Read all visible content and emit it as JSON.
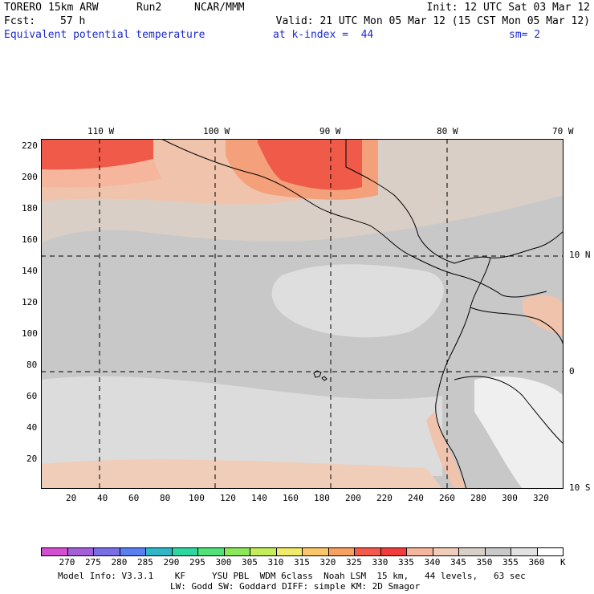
{
  "header": {
    "model": "TORERO",
    "resolution": "15km ARW",
    "run": "Run2",
    "org": "NCAR/MMM",
    "init": "Init: 12 UTC Sat 03 Mar 12",
    "fcst_label": "Fcst:",
    "fcst_value": "57 h",
    "valid": "Valid: 21 UTC Mon 05 Mar 12 (15 CST Mon 05 Mar 12)",
    "field": "Equivalent potential temperature",
    "level": "at k-index =  44",
    "smooth": "sm= 2"
  },
  "map": {
    "lon_labels": [
      "110 W",
      "100 W",
      "90 W",
      "80 W",
      "70 W"
    ],
    "lat_labels": [
      "10 N",
      "0",
      "10 S"
    ],
    "y_ticks": [
      "220",
      "200",
      "180",
      "160",
      "140",
      "120",
      "100",
      "80",
      "60",
      "40",
      "20"
    ],
    "x_ticks": [
      "20",
      "40",
      "60",
      "80",
      "100",
      "120",
      "140",
      "160",
      "180",
      "200",
      "220",
      "240",
      "260",
      "280",
      "300",
      "320"
    ],
    "grid_x_lons": [
      -110,
      -100,
      -90,
      -80,
      -70
    ],
    "grid_y_lats": [
      10,
      0,
      -10
    ]
  },
  "colorbar": {
    "unit": "K",
    "labels": [
      "270",
      "275",
      "280",
      "285",
      "290",
      "295",
      "300",
      "305",
      "310",
      "315",
      "320",
      "325",
      "330",
      "335",
      "340",
      "345",
      "350",
      "355",
      "360"
    ],
    "colors": [
      "#d24fd2",
      "#a35fd8",
      "#7a6ee6",
      "#5b7ff0",
      "#2fb7c8",
      "#2ed6a0",
      "#52e07a",
      "#8ae85a",
      "#c5ec5a",
      "#f2ea6a",
      "#f9c76a",
      "#f7a060",
      "#f35a4c",
      "#f03c3c",
      "#f6b69e",
      "#f0cdb8",
      "#d8d0c8",
      "#c9c9c9",
      "#e2e2e2",
      "#ffffff"
    ]
  },
  "footer": {
    "line1": "Model Info: V3.3.1    KF     YSU PBL  WDM 6class  Noah LSM  15 km,   44 levels,   63 sec",
    "line2": "LW: Godd SW: Goddard DIFF: simple KM: 2D Smagor"
  }
}
